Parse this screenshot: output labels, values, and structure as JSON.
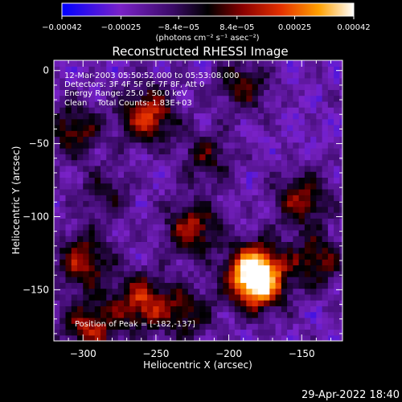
{
  "chart_data": {
    "type": "heatmap",
    "title": "Reconstructed RHESSI Image",
    "xlabel": "Heliocentric X (arcsec)",
    "ylabel": "Heliocentric Y (arcsec)",
    "xlim": [
      -320,
      -122
    ],
    "ylim": [
      -185,
      7
    ],
    "x_ticks": [
      -300,
      -250,
      -200,
      -150
    ],
    "x_tick_labels": [
      "−300",
      "−250",
      "−200",
      "−150"
    ],
    "y_ticks": [
      0,
      -50,
      -100,
      -150
    ],
    "y_tick_labels": [
      "0",
      "−50",
      "−100",
      "−150"
    ],
    "colorbar": {
      "range": [
        -0.00042,
        0.00042
      ],
      "ticks": [
        -0.00042,
        -0.00025,
        -8.4e-05,
        8.4e-05,
        0.00025,
        0.00042
      ],
      "tick_labels": [
        "−0.00042",
        "−0.00025",
        "−8.4e−05",
        "8.4e−05",
        "0.00025",
        "0.00042"
      ],
      "units_label": "(photons cm⁻² s⁻¹ asec⁻²)",
      "colors": [
        "#0000ff",
        "#7a22c8",
        "#3a0a66",
        "#000000",
        "#8a0000",
        "#e33000",
        "#ffa000",
        "#ffffff"
      ]
    },
    "annotations": [
      "12-Mar-2003 05:50:52.000 to 05:53:08.000",
      "Detectors: 3F 4F 5F 6F 7F 8F, Att 0",
      "Energy Range: 25.0 - 50.0 keV",
      "Clean    Total Counts: 1.83E+03"
    ],
    "peak_label": "Position of Peak = [-182,-137]",
    "peak": [
      -182,
      -137
    ],
    "hot_regions": [
      {
        "x": -182,
        "y": -137,
        "level": 1.0
      },
      {
        "x": -255,
        "y": -30,
        "level": 0.65
      },
      {
        "x": -225,
        "y": -108,
        "level": 0.55
      },
      {
        "x": -300,
        "y": -130,
        "level": 0.55
      },
      {
        "x": -260,
        "y": -158,
        "level": 0.6
      },
      {
        "x": -180,
        "y": -150,
        "level": 0.45
      },
      {
        "x": -150,
        "y": -88,
        "level": 0.5
      },
      {
        "x": -140,
        "y": -130,
        "level": 0.45
      },
      {
        "x": -190,
        "y": -10,
        "level": 0.4
      },
      {
        "x": -305,
        "y": -40,
        "level": 0.45
      },
      {
        "x": -295,
        "y": -175,
        "level": 0.55
      },
      {
        "x": -230,
        "y": -165,
        "level": 0.4
      },
      {
        "x": -215,
        "y": -60,
        "level": 0.35
      },
      {
        "x": -285,
        "y": -85,
        "level": 0.3
      }
    ]
  },
  "footer": {
    "timestamp": "29-Apr-2022 18:40"
  }
}
